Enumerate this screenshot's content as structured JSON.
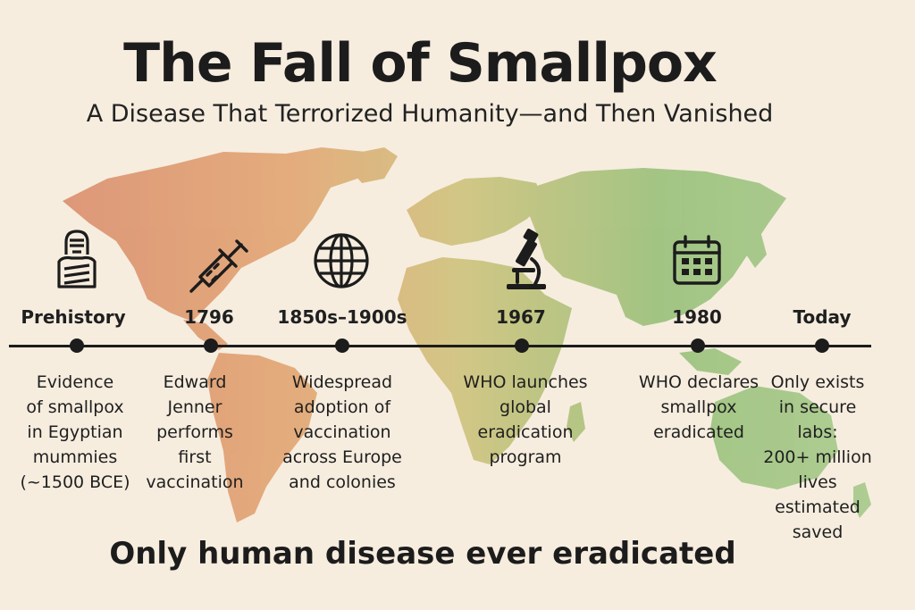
{
  "header": {
    "title": "The Fall of Smallpox",
    "subtitle": "A Disease That Terrorized Humanity—and Then Vanished"
  },
  "colors": {
    "map_red": "#d8886c",
    "map_orange": "#e2a572",
    "map_yellow": "#cfc27c",
    "map_green": "#99c07a",
    "background": "#f6eddf",
    "ink": "#1c1c1c"
  },
  "timeline": {
    "events": [
      {
        "label": "Prehistory",
        "icon": "mummy-icon",
        "lines": [
          "Evidence",
          "of smallpox",
          "in Egyptian",
          "mummies",
          "(~1500 BCE)"
        ]
      },
      {
        "label": "1796",
        "icon": "syringe-icon",
        "lines": [
          "Edward",
          "Jenner",
          "performs",
          "first",
          "vaccination"
        ]
      },
      {
        "label": "1850s–1900s",
        "icon": "globe-icon",
        "lines": [
          "Widespread",
          "adoption of",
          "vaccination",
          "across Europe",
          "and colonies"
        ]
      },
      {
        "label": "1967",
        "icon": "microscope-icon",
        "lines": [
          "WHO launches",
          "global",
          "eradication",
          "program"
        ]
      },
      {
        "label": "1980",
        "icon": "calendar-icon",
        "lines": [
          "WHO declares",
          "smallpox",
          "eradicated"
        ]
      },
      {
        "label": "Today",
        "icon": "",
        "lines": [
          "Only exists",
          "in secure",
          "labs:",
          "200+ million",
          "lives",
          "estimated",
          "saved"
        ]
      }
    ]
  },
  "footer": {
    "tagline": "Only human disease ever eradicated"
  }
}
